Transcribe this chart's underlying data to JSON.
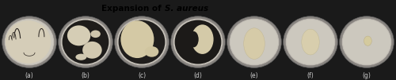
{
  "title_regular": "Expansion of ",
  "title_italic": "S. aureus",
  "labels": [
    "(a)",
    "(b)",
    "(c)",
    "(d)",
    "(e)",
    "(f)",
    "(g)"
  ],
  "n_panels": 7,
  "title_fontsize": 7.5,
  "label_fontsize": 5.5,
  "figure_width": 5.0,
  "figure_height": 1.02,
  "dpi": 100,
  "figure_bg": "#1a1a1a",
  "title_bg": "#d8d5cc",
  "dish_outer_color": "#9a9590",
  "dish_inner_color": "#ccc8bf",
  "dish_bg_color": "#b8b4aa",
  "colony_color": "#d8cba8",
  "dark_colony": "#1a1714",
  "border_color": "#404040"
}
